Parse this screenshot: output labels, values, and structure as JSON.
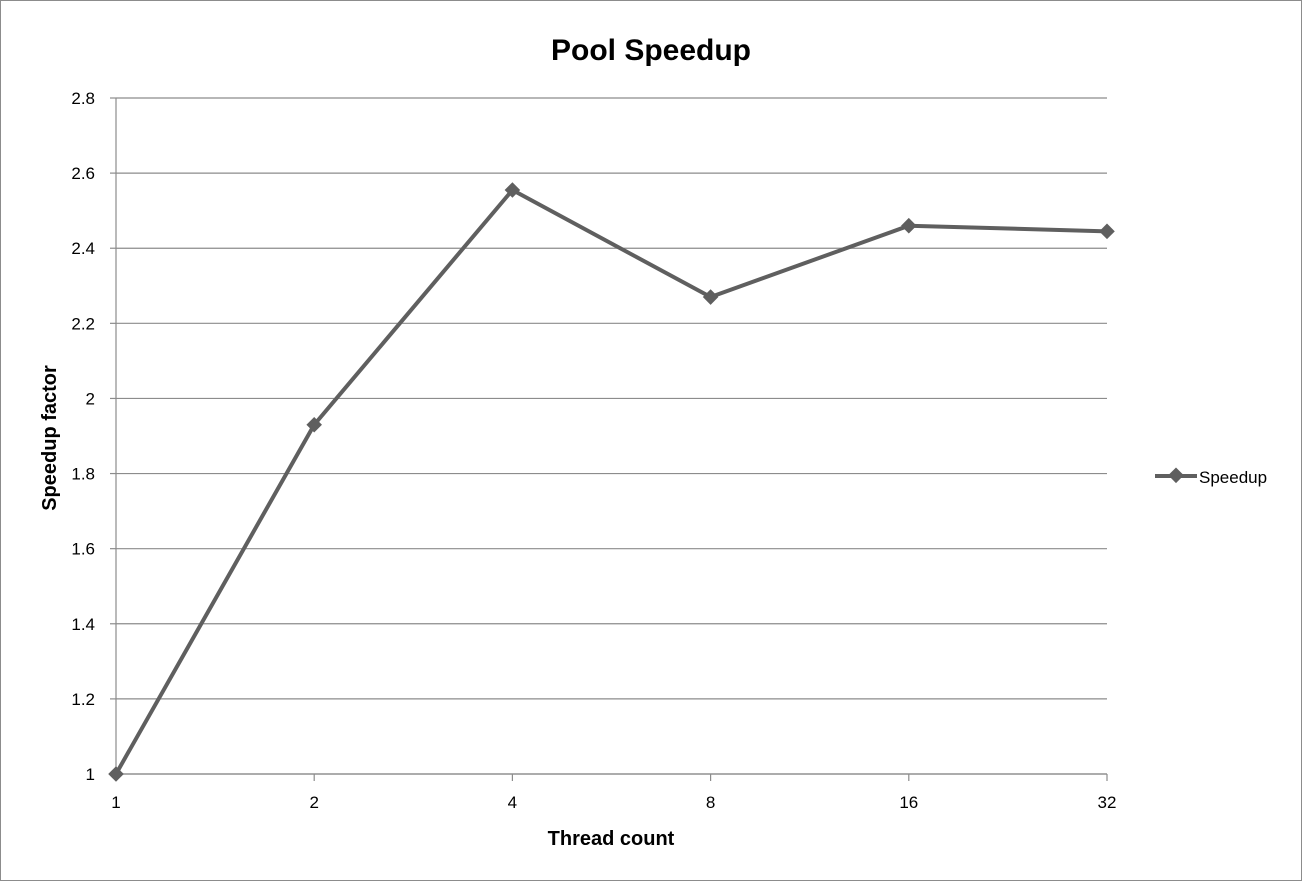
{
  "chart_data": {
    "type": "line",
    "title": "Pool Speedup",
    "xlabel": "Thread count",
    "ylabel": "Speedup factor",
    "categories": [
      "1",
      "2",
      "4",
      "8",
      "16",
      "32"
    ],
    "series": [
      {
        "name": "Speedup",
        "values": [
          1.0,
          1.93,
          2.555,
          2.27,
          2.46,
          2.445
        ]
      }
    ],
    "ylim": [
      1,
      2.8
    ],
    "yticks": [
      "1",
      "1.2",
      "1.4",
      "1.6",
      "1.8",
      "2",
      "2.2",
      "2.4",
      "2.6",
      "2.8"
    ],
    "grid": true,
    "legend_position": "right",
    "colors": {
      "series": "#5f5f5f",
      "grid": "#8c8c8c",
      "axis": "#8c8c8c"
    }
  }
}
